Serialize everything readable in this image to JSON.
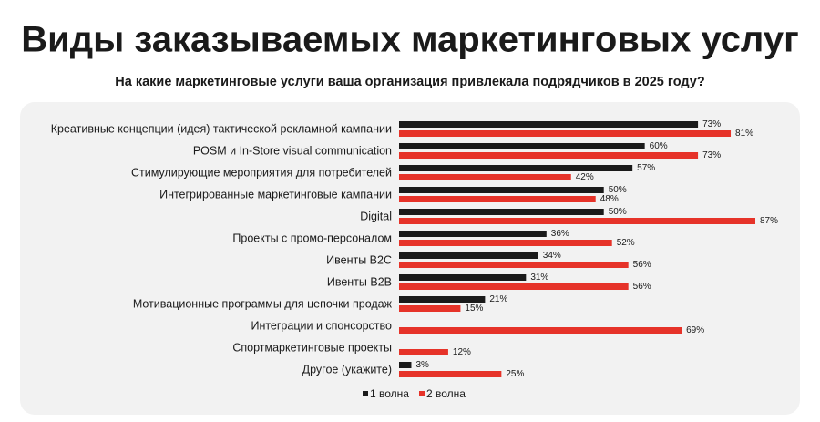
{
  "chart_data": {
    "type": "hbar",
    "title": "Виды заказываемых маркетинговых услуг",
    "subtitle": "На какие маркетинговые услуги ваша организация привлекала подрядчиков в 2025 году?",
    "categories": [
      "Креативные концепции (идея) тактической рекламной кампании",
      "POSM и In-Store visual communication",
      "Стимулирующие мероприятия для потребителей",
      "Интегрированные маркетинговые кампании",
      "Digital",
      "Проекты с промо-персоналом",
      "Ивенты B2C",
      "Ивенты B2B",
      "Мотивационные программы для цепочки продаж",
      "Интеграции и спонсорство",
      "Спортмаркетинговые проекты",
      "Другое (укажите)"
    ],
    "series": [
      {
        "name": "1 волна",
        "color": "#1a1a1a",
        "values": [
          73,
          60,
          57,
          50,
          50,
          36,
          34,
          31,
          21,
          null,
          null,
          3
        ],
        "value_labels": [
          "73%",
          "60%",
          "57%",
          "50%",
          "50%",
          "36%",
          "34%",
          "31%",
          "21%",
          null,
          null,
          "3%"
        ]
      },
      {
        "name": "2 волна",
        "color": "#e63329",
        "values": [
          81,
          73,
          42,
          48,
          87,
          52,
          56,
          56,
          15,
          69,
          12,
          25
        ],
        "value_labels": [
          "81%",
          "73%",
          "42%",
          "48%",
          "87%",
          "52%",
          "56%",
          "56%",
          "15%",
          "69%",
          "12%",
          "25%"
        ]
      }
    ]
  }
}
